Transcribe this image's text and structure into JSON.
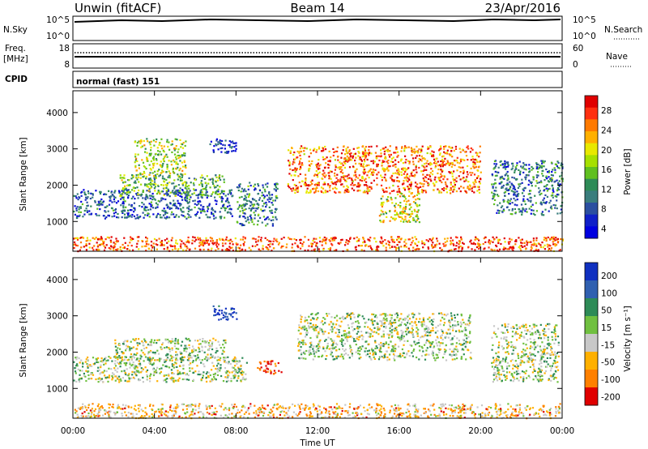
{
  "header": {
    "station": "Unwin (fitACF)",
    "beam": "Beam 14",
    "date": "23/Apr/2016"
  },
  "aux_panels": {
    "nsky": {
      "label": "N.Sky",
      "left_ticks": [
        "10^5",
        "10^0"
      ],
      "right_ticks": [
        "10^5",
        "10^0"
      ],
      "right_label": "N.Search"
    },
    "freq": {
      "label": "Freq.",
      "unit": "[MHz]",
      "left_ticks": [
        "18",
        "8"
      ],
      "right_ticks": [
        "60",
        "0"
      ],
      "right_label": "Nave"
    },
    "cpid": {
      "label": "CPID",
      "value": "normal (fast) 151"
    }
  },
  "chart_data": [
    {
      "type": "heatmap",
      "panel": "power",
      "ylabel": "Slant Range [km]",
      "yticks": [
        1000,
        2000,
        3000,
        4000
      ],
      "ylim": [
        180,
        4600
      ],
      "xlim": [
        0,
        24
      ],
      "colorbar": {
        "label": "Power [dB]",
        "ticks": [
          "28",
          "24",
          "20",
          "16",
          "12",
          "8",
          "4"
        ],
        "colors": [
          "#e00000",
          "#ff3010",
          "#ff7a00",
          "#ffb000",
          "#e8e800",
          "#a6e000",
          "#60c020",
          "#2e8b57",
          "#3a7d7d",
          "#2b4fa0",
          "#1020c8",
          "#0000e0"
        ]
      },
      "echo_regions": [
        {
          "t0": 0.0,
          "t1": 7.8,
          "r0": 1100,
          "r1": 1900,
          "level": 0.78
        },
        {
          "t0": 2.2,
          "t1": 7.5,
          "r0": 1700,
          "r1": 2300,
          "level": 0.55
        },
        {
          "t0": 3.0,
          "t1": 5.5,
          "r0": 2300,
          "r1": 3300,
          "level": 0.45
        },
        {
          "t0": 6.5,
          "t1": 8.0,
          "r0": 2900,
          "r1": 3300,
          "level": 0.9
        },
        {
          "t0": 8.0,
          "t1": 10.0,
          "r0": 900,
          "r1": 2100,
          "level": 0.7
        },
        {
          "t0": 10.5,
          "t1": 20.0,
          "r0": 1800,
          "r1": 3100,
          "level": 0.2
        },
        {
          "t0": 15.0,
          "t1": 17.0,
          "r0": 1000,
          "r1": 1800,
          "level": 0.4
        },
        {
          "t0": 20.5,
          "t1": 24.0,
          "r0": 1200,
          "r1": 2700,
          "level": 0.72
        },
        {
          "t0": 0.0,
          "t1": 24.0,
          "r0": 200,
          "r1": 600,
          "level": 0.15
        }
      ]
    },
    {
      "type": "heatmap",
      "panel": "velocity",
      "ylabel": "Slant Range [km]",
      "xlabel": "Time UT",
      "xticks": [
        "00:00",
        "04:00",
        "08:00",
        "12:00",
        "16:00",
        "20:00",
        "00:00"
      ],
      "yticks": [
        1000,
        2000,
        3000,
        4000
      ],
      "ylim": [
        180,
        4600
      ],
      "xlim": [
        0,
        24
      ],
      "colorbar": {
        "label": "Velocity [m s⁻¹]",
        "ticks": [
          "200",
          "100",
          "50",
          "15",
          "-15",
          "-50",
          "-100",
          "-200"
        ],
        "colors": [
          "#1030c0",
          "#3060b0",
          "#2e8b57",
          "#70c040",
          "#c8c8c8",
          "#ffb000",
          "#ff8000",
          "#e00000"
        ]
      },
      "echo_regions": [
        {
          "t0": 0.0,
          "t1": 8.5,
          "r0": 1200,
          "r1": 1900,
          "level": 0.5
        },
        {
          "t0": 2.0,
          "t1": 7.5,
          "r0": 1800,
          "r1": 2400,
          "level": 0.5
        },
        {
          "t0": 6.8,
          "t1": 8.0,
          "r0": 2900,
          "r1": 3300,
          "level": 0.05
        },
        {
          "t0": 9.0,
          "t1": 10.2,
          "r0": 1400,
          "r1": 1800,
          "level": 0.9
        },
        {
          "t0": 11.0,
          "t1": 19.5,
          "r0": 1800,
          "r1": 3100,
          "level": 0.5
        },
        {
          "t0": 20.5,
          "t1": 23.8,
          "r0": 1200,
          "r1": 2800,
          "level": 0.5
        },
        {
          "t0": 0.0,
          "t1": 24.0,
          "r0": 200,
          "r1": 600,
          "level": 0.68
        }
      ]
    }
  ]
}
